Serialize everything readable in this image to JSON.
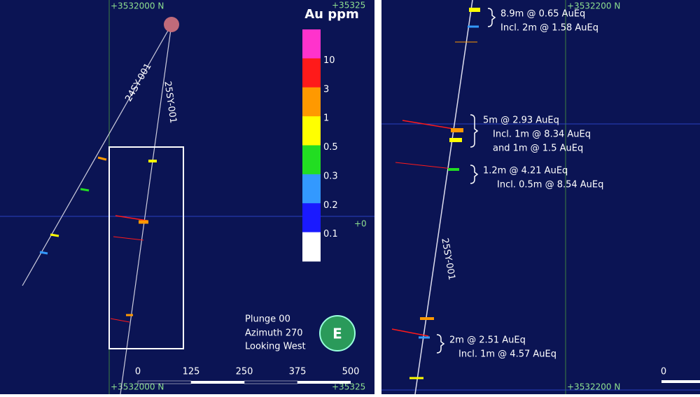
{
  "left_panel": {
    "grid_labels": {
      "top": "+3532000 N",
      "bottom": "+3532000 N",
      "top_right": "+35325",
      "bottom_right": "+35325",
      "mid_right": "+0"
    },
    "legend": {
      "title": "Au ppm",
      "colors": [
        "#ff33cc",
        "#ff1a1a",
        "#ff9900",
        "#ffff00",
        "#22dd22",
        "#3399ff",
        "#1a1aff",
        "#ffffff"
      ],
      "labels": [
        "10",
        "3",
        "1",
        "0.5",
        "0.3",
        "0.2",
        "0.1"
      ]
    },
    "drillholes": [
      "24SY-001",
      "25SY-001"
    ],
    "view": [
      "Plunge 00",
      "Azimuth 270",
      "Looking West"
    ],
    "compass": "E",
    "scale": [
      "0",
      "125",
      "250",
      "375",
      "500"
    ]
  },
  "right_panel": {
    "grid_labels": {
      "top": "+3532200 N",
      "bottom": "+3532200 N"
    },
    "drillhole": "25SY-001",
    "intercepts": [
      {
        "lines": [
          "8.9m @ 0.65 AuEq",
          "Incl. 2m @ 1.58 AuEq"
        ]
      },
      {
        "lines": [
          "5m @ 2.93 AuEq",
          "Incl. 1m @ 8.34 AuEq",
          "and 1m @ 1.5 AuEq"
        ]
      },
      {
        "lines": [
          "1.2m @ 4.21 AuEq",
          "Incl. 0.5m @ 8.54 AuEq"
        ]
      },
      {
        "lines": [
          "2m @ 2.51 AuEq",
          "Incl. 1m @ 4.57 AuEq"
        ]
      }
    ],
    "scale": [
      "0"
    ]
  }
}
